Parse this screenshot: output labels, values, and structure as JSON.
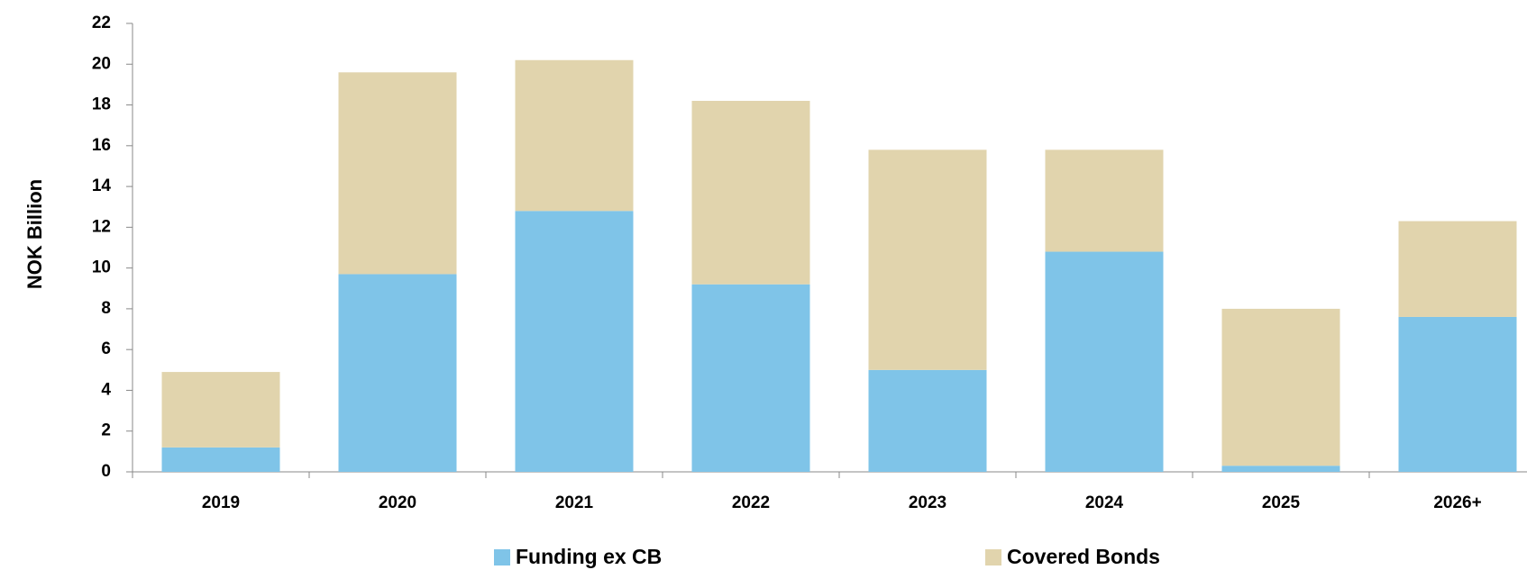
{
  "chart_data": {
    "type": "stacked_bar",
    "y_label": "NOK Billion",
    "categories": [
      "2019",
      "2020",
      "2021",
      "2022",
      "2023",
      "2024",
      "2025",
      "2026+"
    ],
    "series": [
      {
        "name": "Funding ex CB",
        "color": "#7fc4e8",
        "values": [
          1.2,
          9.7,
          12.8,
          9.2,
          5.0,
          10.8,
          0.3,
          7.6
        ]
      },
      {
        "name": "Covered Bonds",
        "color": "#e1d4ad",
        "values": [
          3.7,
          9.9,
          7.4,
          9.0,
          10.8,
          5.0,
          7.7,
          4.7
        ]
      }
    ],
    "ylim": [
      0,
      22
    ],
    "yticks": [
      0,
      2,
      4,
      6,
      8,
      10,
      12,
      14,
      16,
      18,
      20,
      22
    ],
    "grid": false,
    "legend": "bottom"
  }
}
